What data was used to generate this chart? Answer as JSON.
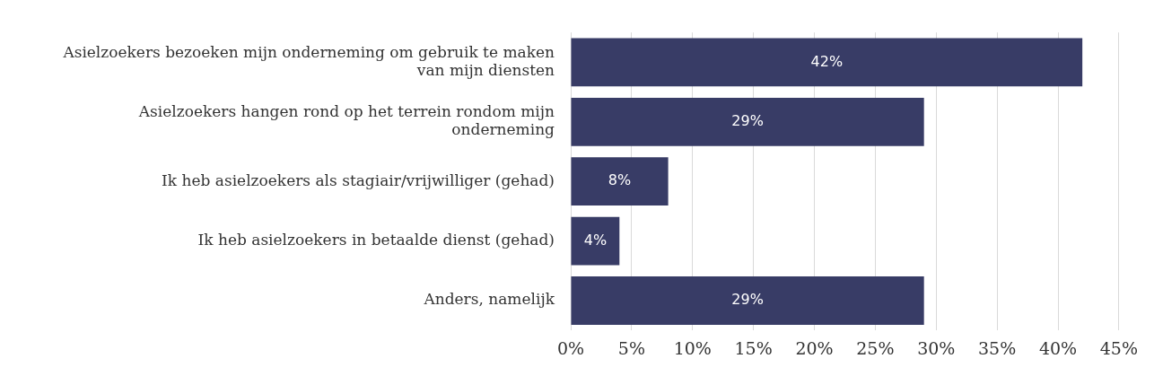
{
  "chart_data": {
    "type": "bar",
    "orientation": "horizontal",
    "categories": [
      "Asielzoekers bezoeken mijn onderneming om gebruik te maken van mijn diensten",
      "Asielzoekers hangen rond op het terrein rondom mijn onderneming",
      "Ik heb asielzoekers als stagiair/vrijwilliger (gehad)",
      "Ik heb asielzoekers in betaalde dienst (gehad)",
      "Anders, namelijk"
    ],
    "values": [
      42,
      29,
      8,
      4,
      29
    ],
    "value_labels": [
      "42%",
      "29%",
      "8%",
      "4%",
      "29%"
    ],
    "color": "#383c66",
    "xlim": [
      0,
      45
    ],
    "xticks": [
      {
        "value": 0,
        "label": "0%"
      },
      {
        "value": 5,
        "label": "5%"
      },
      {
        "value": 10,
        "label": "10%"
      },
      {
        "value": 15,
        "label": "15%"
      },
      {
        "value": 20,
        "label": "20%"
      },
      {
        "value": 25,
        "label": "25%"
      },
      {
        "value": 30,
        "label": "30%"
      },
      {
        "value": 35,
        "label": "35%"
      },
      {
        "value": 40,
        "label": "40%"
      },
      {
        "value": 45,
        "label": "45%"
      }
    ],
    "grid": "x",
    "legend": false
  }
}
